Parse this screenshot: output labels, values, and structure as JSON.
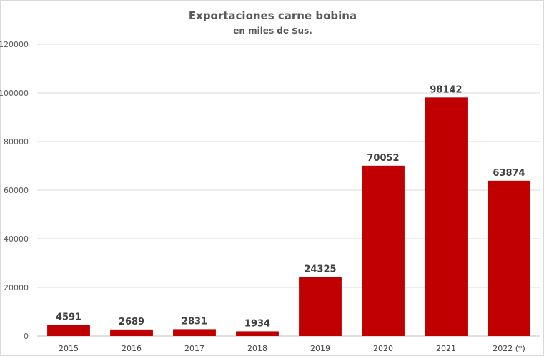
{
  "chart_data": {
    "type": "bar",
    "title": "Exportaciones carne bobina",
    "subtitle": "en miles de $us.",
    "categories": [
      "2015",
      "2016",
      "2017",
      "2018",
      "2019",
      "2020",
      "2021",
      "2022 (*)"
    ],
    "values": [
      4591,
      2689,
      2831,
      1934,
      24325,
      70052,
      98142,
      63874
    ],
    "ylim": [
      0,
      120000
    ],
    "yticks": [
      0,
      20000,
      40000,
      60000,
      80000,
      100000,
      120000
    ],
    "grid": true,
    "bar_color": "#c00000"
  }
}
